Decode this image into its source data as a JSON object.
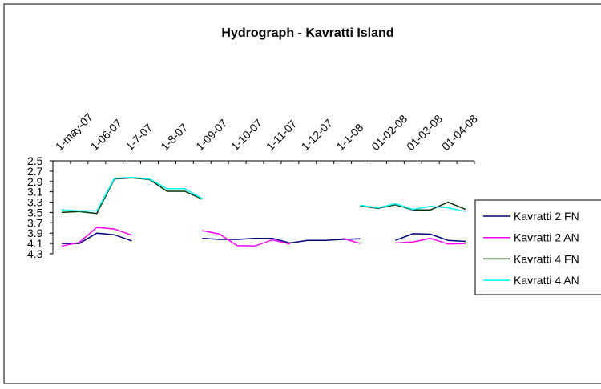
{
  "chart_data": {
    "type": "line",
    "title": "Hydrograph - Kavratti Island",
    "categories": [
      "1-may-07",
      null,
      "1-06-07",
      null,
      "1-7-07",
      null,
      "1-8-07",
      null,
      "1-09-07",
      null,
      "1-10-07",
      null,
      "1-11-07",
      null,
      "1-12-07",
      null,
      "1-1-08",
      null,
      "01-02-08",
      null,
      "01-03-08",
      null,
      "01-04-08",
      null
    ],
    "ylim": [
      2.5,
      4.3
    ],
    "y_inverted": true,
    "yticks": [
      2.5,
      2.7,
      2.9,
      3.1,
      3.3,
      3.5,
      3.7,
      3.9,
      4.1,
      4.3
    ],
    "legend": "right",
    "series": [
      {
        "name": "Kavratti 2 FN",
        "color": "#000080",
        "values": [
          4.1,
          4.1,
          3.9,
          3.93,
          4.05,
          null,
          null,
          null,
          4.0,
          4.02,
          4.02,
          4.0,
          4.0,
          4.09,
          4.04,
          4.04,
          4.02,
          4.01,
          null,
          4.04,
          3.91,
          3.92,
          4.04,
          4.06
        ]
      },
      {
        "name": "Kavratti 2 AN",
        "color": "#ff00ff",
        "values": [
          4.15,
          4.08,
          3.79,
          3.82,
          3.94,
          null,
          null,
          null,
          3.85,
          3.92,
          4.14,
          4.15,
          4.03,
          4.11,
          null,
          null,
          4.0,
          4.1,
          null,
          4.09,
          4.07,
          4.0,
          4.11,
          4.1
        ]
      },
      {
        "name": "Kavratti 4 FN",
        "color": "#003300",
        "values": [
          3.5,
          3.48,
          3.52,
          2.85,
          2.83,
          2.86,
          3.09,
          3.09,
          3.24,
          null,
          null,
          null,
          null,
          null,
          null,
          null,
          null,
          3.37,
          3.42,
          3.35,
          3.45,
          3.45,
          3.3,
          3.44
        ]
      },
      {
        "name": "Kavratti 4 AN",
        "color": "#00ffff",
        "values": [
          3.45,
          3.47,
          3.47,
          2.84,
          2.82,
          2.85,
          3.04,
          3.04,
          3.23,
          null,
          null,
          null,
          null,
          null,
          null,
          null,
          null,
          3.36,
          3.41,
          3.33,
          3.44,
          3.38,
          3.41,
          3.48
        ]
      }
    ]
  }
}
